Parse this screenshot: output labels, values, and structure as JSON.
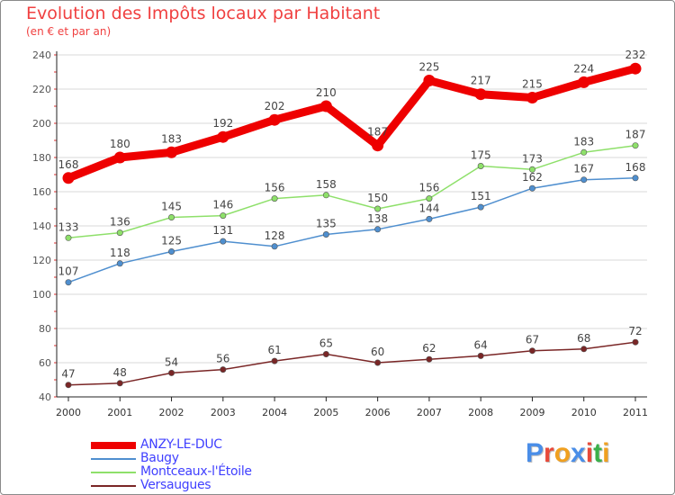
{
  "title": "Evolution des Impôts locaux par Habitant",
  "subtitle": "(en € et par an)",
  "chart_data": {
    "type": "line",
    "title": "Evolution des Impôts locaux par Habitant",
    "subtitle": "(en € et par an)",
    "x": [
      "2000",
      "2001",
      "2002",
      "2003",
      "2004",
      "2005",
      "2006",
      "2007",
      "2008",
      "2009",
      "2010",
      "2011"
    ],
    "ylim": [
      40,
      240
    ],
    "yticks": [
      "40",
      "60",
      "80",
      "100",
      "120",
      "140",
      "160",
      "180",
      "200",
      "220",
      "240"
    ],
    "grid": "horizontal",
    "legend_position": "bottom-left",
    "series": [
      {
        "name": "ANZY-LE-DUC",
        "color": "#ee0000",
        "values": [
          168,
          180,
          183,
          192,
          202,
          210,
          187,
          225,
          217,
          215,
          224,
          232
        ],
        "labels": [
          "168",
          "180",
          "183",
          "192",
          "202",
          "210",
          "187",
          "225",
          "217",
          "215",
          "224",
          "232"
        ]
      },
      {
        "name": "Baugy",
        "color": "#4f8fcf",
        "values": [
          107,
          118,
          125,
          131,
          128,
          135,
          138,
          144,
          151,
          162,
          167,
          168
        ],
        "labels": [
          "107",
          "118",
          "125",
          "131",
          "128",
          "135",
          "138",
          "144",
          "151",
          "162",
          "167",
          "168"
        ]
      },
      {
        "name": "Montceaux-l'Étoile",
        "color": "#8ee06a",
        "values": [
          133,
          136,
          145,
          146,
          156,
          158,
          150,
          156,
          175,
          173,
          183,
          187
        ],
        "labels": [
          "133",
          "136",
          "145",
          "146",
          "156",
          "158",
          "150",
          "156",
          "175",
          "173",
          "183",
          "187"
        ]
      },
      {
        "name": "Versaugues",
        "color": "#7a2626",
        "values": [
          47,
          48,
          54,
          56,
          61,
          65,
          60,
          62,
          64,
          67,
          68,
          72
        ],
        "labels": [
          "47",
          "48",
          "54",
          "56",
          "61",
          "65",
          "60",
          "62",
          "64",
          "67",
          "68",
          "72"
        ]
      }
    ]
  },
  "logo": {
    "text": "Proxiti",
    "letters": [
      {
        "ch": "P",
        "color": "#4a8ee8"
      },
      {
        "ch": "r",
        "color": "#e84a3a"
      },
      {
        "ch": "o",
        "color": "#f0a020"
      },
      {
        "ch": "x",
        "color": "#4a8ee8"
      },
      {
        "ch": "i",
        "color": "#e84a3a"
      },
      {
        "ch": "t",
        "color": "#3ab04a"
      },
      {
        "ch": "i",
        "color": "#f0a020"
      }
    ]
  }
}
